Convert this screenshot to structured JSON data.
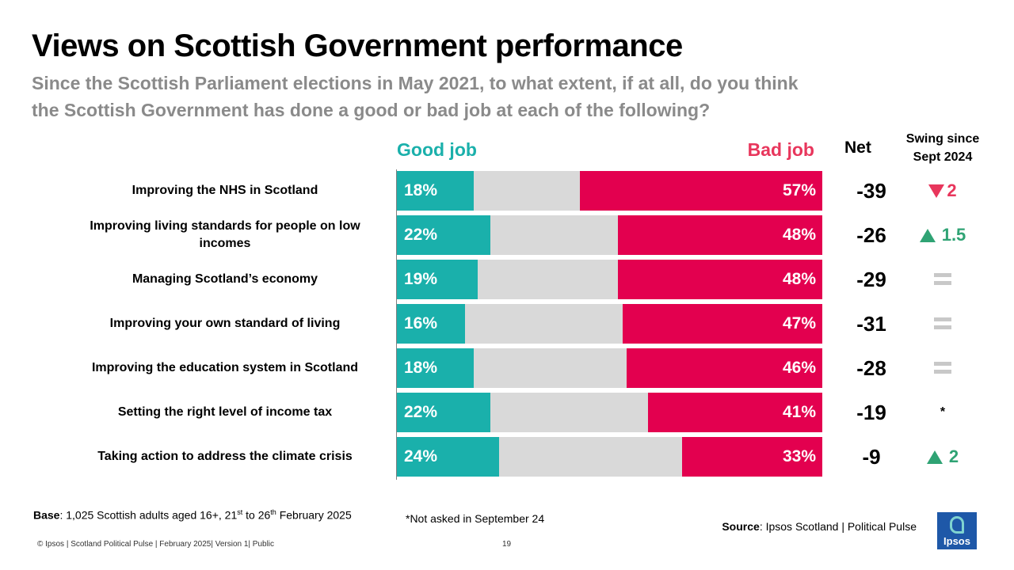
{
  "title": "Views on Scottish Government performance",
  "subtitle": "Since the Scottish Parliament elections in May 2021, to what extent, if at all, do you think the Scottish Government has done a good or bad job at each of the following?",
  "headers": {
    "good": "Good job",
    "bad": "Bad job",
    "net": "Net",
    "swing_line1": "Swing since",
    "swing_line2": "Sept 2024"
  },
  "colors": {
    "good": "#1ab0ab",
    "bad": "#e3004f",
    "neutral": "#d9d9d9",
    "swing_down": "#e8365c",
    "swing_up": "#2fa374"
  },
  "chart_data": {
    "type": "bar",
    "orientation": "horizontal-stacked",
    "title": "Views on Scottish Government performance",
    "xlim": [
      0,
      100
    ],
    "categories": [
      "Improving the NHS in Scotland",
      "Improving living standards for people on low incomes",
      "Managing Scotland’s economy",
      "Improving your own standard of living",
      "Improving the education system in Scotland",
      "Setting the right level of income tax",
      "Taking action to address the climate crisis"
    ],
    "series": [
      {
        "name": "Good job",
        "values": [
          18,
          22,
          19,
          16,
          18,
          22,
          24
        ],
        "labels": [
          "18%",
          "22%",
          "19%",
          "16%",
          "18%",
          "22%",
          "24%"
        ]
      },
      {
        "name": "Bad job",
        "values": [
          57,
          48,
          48,
          47,
          46,
          41,
          33
        ],
        "labels": [
          "57%",
          "48%",
          "48%",
          "47%",
          "46%",
          "41%",
          "33%"
        ]
      }
    ],
    "net": [
      "-39",
      "-26",
      "-29",
      "-31",
      "-28",
      "-19",
      "-9"
    ],
    "swing": [
      {
        "direction": "down",
        "value": "2"
      },
      {
        "direction": "up",
        "value": "1.5"
      },
      {
        "direction": "equal",
        "value": ""
      },
      {
        "direction": "equal",
        "value": ""
      },
      {
        "direction": "equal",
        "value": ""
      },
      {
        "direction": "none",
        "value": "*"
      },
      {
        "direction": "up",
        "value": "2"
      }
    ]
  },
  "footer": {
    "base_label": "Base",
    "base_text": ": 1,025 Scottish adults aged 16+, 21",
    "base_sup1": "st",
    "base_mid": " to 26",
    "base_sup2": "th",
    "base_end": " February 2025",
    "not_asked": "*Not asked in September 24",
    "source_label": "Source",
    "source_text": ": Ipsos Scotland | Political Pulse",
    "copyright": "© Ipsos | Scotland Political Pulse | February 2025| Version 1| Public",
    "page_number": "19",
    "logo_text": "Ipsos"
  }
}
